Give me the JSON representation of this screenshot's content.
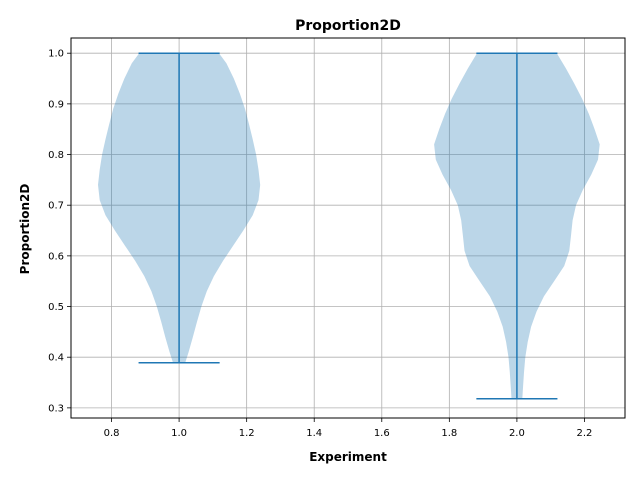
{
  "chart_data": {
    "type": "violin",
    "title": "Proportion2D",
    "xlabel": "Experiment",
    "ylabel": "Proportion2D",
    "xlim": [
      0.68,
      2.32
    ],
    "ylim": [
      0.28,
      1.03
    ],
    "xticks": [
      "0.8",
      "1.0",
      "1.2",
      "1.4",
      "1.6",
      "1.8",
      "2.0",
      "2.2"
    ],
    "yticks": [
      "0.3",
      "0.4",
      "0.5",
      "0.6",
      "0.7",
      "0.8",
      "0.9",
      "1.0"
    ],
    "grid": true,
    "colors": {
      "body": "#1f77b4",
      "line": "#1f77b4"
    },
    "violins": [
      {
        "position": 1.0,
        "min": 0.389,
        "max": 1.0,
        "profile": [
          [
            1.0,
            0.118
          ],
          [
            0.98,
            0.14
          ],
          [
            0.95,
            0.162
          ],
          [
            0.92,
            0.18
          ],
          [
            0.89,
            0.195
          ],
          [
            0.86,
            0.207
          ],
          [
            0.83,
            0.218
          ],
          [
            0.8,
            0.228
          ],
          [
            0.77,
            0.235
          ],
          [
            0.74,
            0.24
          ],
          [
            0.71,
            0.235
          ],
          [
            0.68,
            0.218
          ],
          [
            0.65,
            0.19
          ],
          [
            0.62,
            0.16
          ],
          [
            0.59,
            0.13
          ],
          [
            0.56,
            0.103
          ],
          [
            0.53,
            0.082
          ],
          [
            0.5,
            0.066
          ],
          [
            0.47,
            0.053
          ],
          [
            0.44,
            0.041
          ],
          [
            0.41,
            0.028
          ],
          [
            0.389,
            0.018
          ]
        ]
      },
      {
        "position": 2.0,
        "min": 0.318,
        "max": 1.0,
        "profile": [
          [
            1.0,
            0.118
          ],
          [
            0.97,
            0.145
          ],
          [
            0.94,
            0.17
          ],
          [
            0.91,
            0.193
          ],
          [
            0.88,
            0.213
          ],
          [
            0.85,
            0.23
          ],
          [
            0.82,
            0.245
          ],
          [
            0.79,
            0.24
          ],
          [
            0.76,
            0.22
          ],
          [
            0.73,
            0.195
          ],
          [
            0.7,
            0.175
          ],
          [
            0.67,
            0.165
          ],
          [
            0.64,
            0.16
          ],
          [
            0.61,
            0.155
          ],
          [
            0.58,
            0.14
          ],
          [
            0.55,
            0.11
          ],
          [
            0.52,
            0.08
          ],
          [
            0.49,
            0.058
          ],
          [
            0.46,
            0.042
          ],
          [
            0.43,
            0.032
          ],
          [
            0.4,
            0.025
          ],
          [
            0.37,
            0.021
          ],
          [
            0.34,
            0.018
          ],
          [
            0.318,
            0.016
          ]
        ]
      }
    ]
  }
}
